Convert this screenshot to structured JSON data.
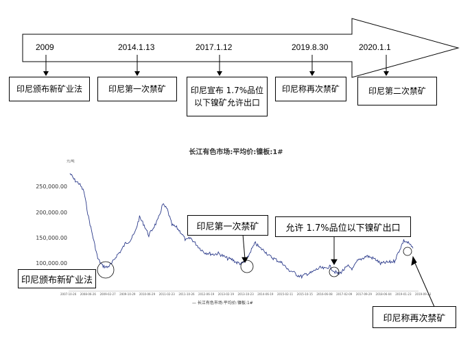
{
  "timeline": {
    "events": [
      {
        "date": "2009",
        "label": "印尼颁布新矿业法"
      },
      {
        "date": "2014.1.13",
        "label": "印尼第一次禁矿"
      },
      {
        "date": "2017.1.12",
        "label": "印尼宣布 1.7%品位以下镍矿允许出口"
      },
      {
        "date": "2019.8.30",
        "label": "印尼称再次禁矿"
      },
      {
        "date": "2020.1.1",
        "label": "印尼第二次禁矿"
      }
    ]
  },
  "chart": {
    "title": "长江有色市场:平均价:镍板:1#",
    "unit": "元/吨",
    "legend": "— 长江有色市场:平均价:镍板:1#",
    "yticks": [
      "250,000.00",
      "200,000.00",
      "150,000.00",
      "100,000.00"
    ],
    "xticks": [
      "2007-10-26",
      "2008-06-26",
      "2009-02-27",
      "2009-10-29",
      "2010-06-29",
      "2011-02-23",
      "2011-10-26",
      "2012-06-19",
      "2013-02-19",
      "2013-10-23",
      "2014-06-19",
      "2015-02-11",
      "2015-10-15",
      "2016-06-08",
      "2017-02-09",
      "2017-09-29",
      "2018-06-04",
      "2019-01-23",
      "2019-09-23"
    ],
    "callouts": {
      "law": "印尼颁布新矿业法",
      "ban1": "印尼第一次禁矿",
      "allow": "允许 1.7%品位以下镍矿出口",
      "reban": "印尼称再次禁矿"
    }
  },
  "chart_data": {
    "type": "line",
    "title": "长江有色市场:平均价:镍板:1#",
    "ylabel": "元/吨",
    "ylim": [
      70000,
      290000
    ],
    "x": [
      "2007-10",
      "2007-12",
      "2008-02",
      "2008-04",
      "2008-06",
      "2008-08",
      "2008-10",
      "2008-12",
      "2009-02",
      "2009-04",
      "2009-06",
      "2009-08",
      "2009-10",
      "2009-12",
      "2010-02",
      "2010-04",
      "2010-06",
      "2010-08",
      "2010-10",
      "2010-12",
      "2011-02",
      "2011-04",
      "2011-06",
      "2011-08",
      "2011-10",
      "2011-12",
      "2012-02",
      "2012-04",
      "2012-06",
      "2012-08",
      "2012-10",
      "2012-12",
      "2013-02",
      "2013-04",
      "2013-06",
      "2013-08",
      "2013-10",
      "2013-12",
      "2014-02",
      "2014-04",
      "2014-06",
      "2014-08",
      "2014-10",
      "2014-12",
      "2015-02",
      "2015-04",
      "2015-06",
      "2015-08",
      "2015-10",
      "2015-12",
      "2016-02",
      "2016-04",
      "2016-06",
      "2016-08",
      "2016-10",
      "2016-12",
      "2017-02",
      "2017-04",
      "2017-06",
      "2017-08",
      "2017-10",
      "2017-12",
      "2018-02",
      "2018-04",
      "2018-06",
      "2018-08",
      "2018-10",
      "2018-12",
      "2019-02",
      "2019-04",
      "2019-06",
      "2019-08",
      "2019-09",
      "2019-10",
      "2019-11"
    ],
    "series": [
      {
        "name": "长江有色市场:平均价:镍板:1#",
        "values": [
          275000,
          262000,
          255000,
          240000,
          190000,
          150000,
          110000,
          96000,
          93000,
          100000,
          115000,
          125000,
          140000,
          145000,
          160000,
          190000,
          175000,
          155000,
          170000,
          185000,
          215000,
          205000,
          175000,
          170000,
          160000,
          145000,
          150000,
          140000,
          130000,
          122000,
          120000,
          118000,
          120000,
          115000,
          110000,
          108000,
          102000,
          100000,
          105000,
          125000,
          140000,
          130000,
          125000,
          115000,
          110000,
          105000,
          100000,
          88000,
          85000,
          78000,
          75000,
          80000,
          82000,
          88000,
          92000,
          90000,
          95000,
          85000,
          80000,
          88000,
          95000,
          90000,
          105000,
          110000,
          115000,
          112000,
          108000,
          100000,
          102000,
          103000,
          105000,
          125000,
          145000,
          140000,
          130000
        ]
      }
    ]
  }
}
